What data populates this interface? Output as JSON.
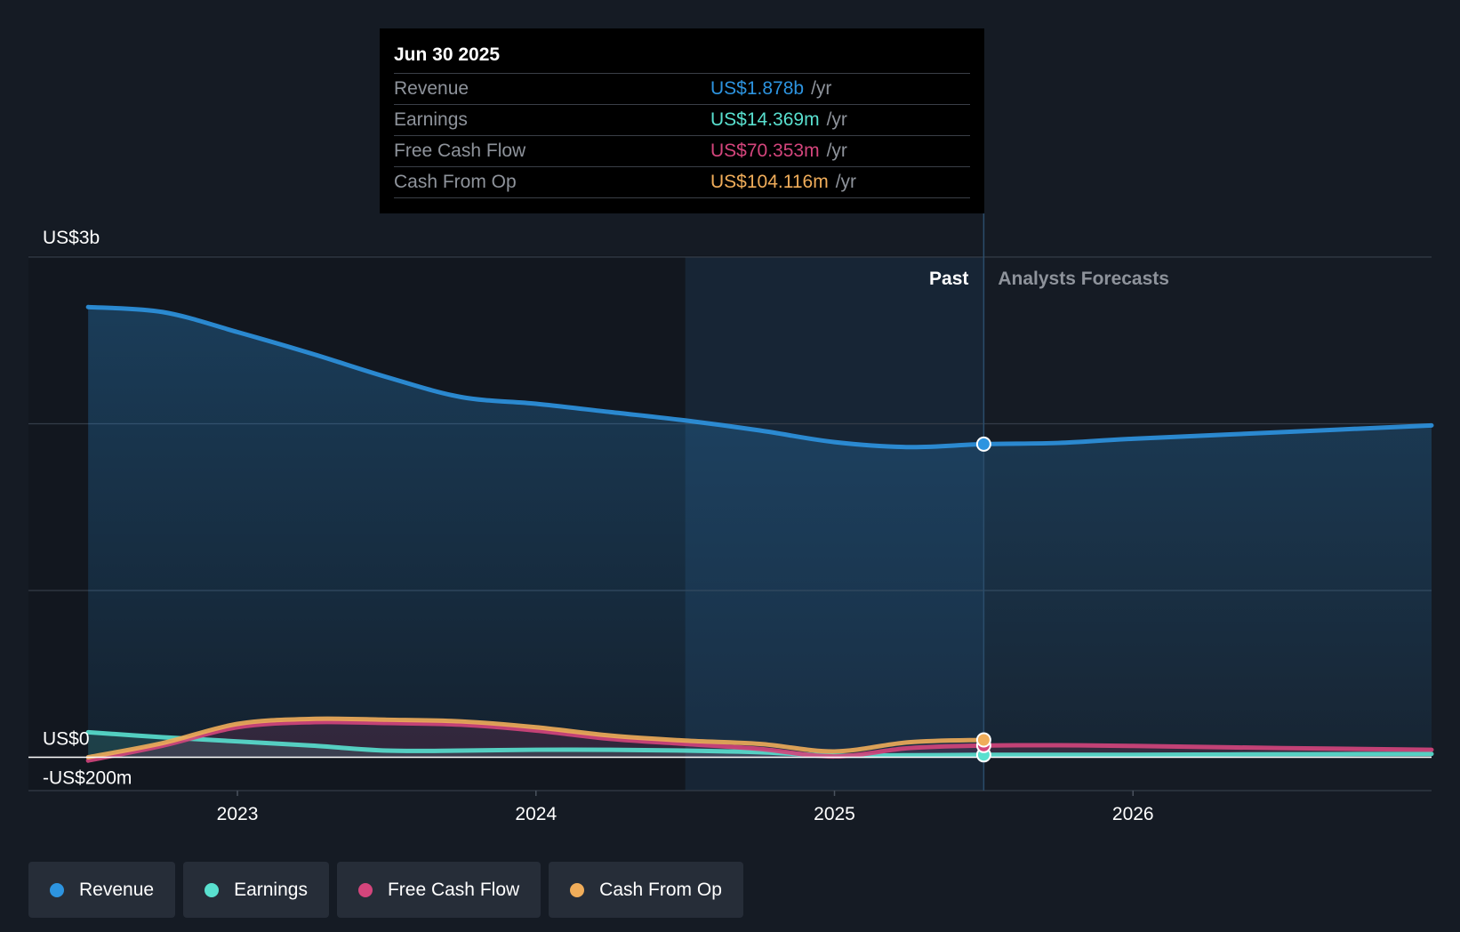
{
  "tooltip": {
    "date": "Jun 30 2025",
    "rows": [
      {
        "label": "Revenue",
        "value": "US$1.878b",
        "unit": "/yr",
        "color": "#2d94e0"
      },
      {
        "label": "Earnings",
        "value": "US$14.369m",
        "unit": "/yr",
        "color": "#59e0cf"
      },
      {
        "label": "Free Cash Flow",
        "value": "US$70.353m",
        "unit": "/yr",
        "color": "#d4457c"
      },
      {
        "label": "Cash From Op",
        "value": "US$104.116m",
        "unit": "/yr",
        "color": "#f0ad5a"
      }
    ]
  },
  "legend": [
    {
      "label": "Revenue",
      "color": "#2d94e0"
    },
    {
      "label": "Earnings",
      "color": "#59e0cf"
    },
    {
      "label": "Free Cash Flow",
      "color": "#d4457c"
    },
    {
      "label": "Cash From Op",
      "color": "#f0ad5a"
    }
  ],
  "chart_data": {
    "type": "area",
    "y_tick_labels": [
      {
        "label": "US$3b",
        "value": 3000
      },
      {
        "label": "US$0",
        "value": 0
      },
      {
        "label": "-US$200m",
        "value": -200
      }
    ],
    "ylim": [
      -200,
      3000
    ],
    "y_gridlines": [
      3000,
      2000,
      1000,
      0,
      -200
    ],
    "x_ticks": [
      {
        "label": "2023",
        "value": 2023.0
      },
      {
        "label": "2024",
        "value": 2024.0
      },
      {
        "label": "2025",
        "value": 2025.0
      },
      {
        "label": "2026",
        "value": 2026.0
      }
    ],
    "xlim": [
      2022.3,
      2027.0
    ],
    "past_label": "Past",
    "forecast_label": "Analysts Forecasts",
    "divider_x": 2025.5,
    "highlight_band": [
      2024.5,
      2025.5
    ],
    "grid": true,
    "series": [
      {
        "name": "Revenue",
        "color": "#2d94e0",
        "fill": true,
        "points": [
          [
            2022.5,
            2700
          ],
          [
            2022.75,
            2670
          ],
          [
            2023.0,
            2550
          ],
          [
            2023.25,
            2420
          ],
          [
            2023.5,
            2280
          ],
          [
            2023.75,
            2160
          ],
          [
            2024.0,
            2120
          ],
          [
            2024.25,
            2070
          ],
          [
            2024.5,
            2020
          ],
          [
            2024.75,
            1960
          ],
          [
            2025.0,
            1890
          ],
          [
            2025.25,
            1860
          ],
          [
            2025.5,
            1878
          ],
          [
            2025.75,
            1885
          ],
          [
            2026.0,
            1910
          ],
          [
            2026.5,
            1950
          ],
          [
            2027.0,
            1990
          ]
        ]
      },
      {
        "name": "Earnings",
        "color": "#59e0cf",
        "fill": true,
        "points": [
          [
            2022.5,
            150
          ],
          [
            2022.75,
            120
          ],
          [
            2023.0,
            95
          ],
          [
            2023.25,
            70
          ],
          [
            2023.5,
            40
          ],
          [
            2023.75,
            40
          ],
          [
            2024.0,
            45
          ],
          [
            2024.25,
            45
          ],
          [
            2024.5,
            40
          ],
          [
            2024.75,
            30
          ],
          [
            2025.0,
            10
          ],
          [
            2025.25,
            12
          ],
          [
            2025.5,
            14.369
          ],
          [
            2025.75,
            15
          ],
          [
            2026.0,
            15
          ],
          [
            2026.5,
            18
          ],
          [
            2027.0,
            20
          ]
        ]
      },
      {
        "name": "Free Cash Flow",
        "color": "#d4457c",
        "fill": true,
        "points": [
          [
            2022.5,
            -20
          ],
          [
            2022.75,
            70
          ],
          [
            2023.0,
            180
          ],
          [
            2023.25,
            210
          ],
          [
            2023.5,
            205
          ],
          [
            2023.75,
            195
          ],
          [
            2024.0,
            160
          ],
          [
            2024.25,
            110
          ],
          [
            2024.5,
            80
          ],
          [
            2024.75,
            50
          ],
          [
            2025.0,
            5
          ],
          [
            2025.25,
            55
          ],
          [
            2025.5,
            70.353
          ],
          [
            2025.75,
            72
          ],
          [
            2026.0,
            68
          ],
          [
            2026.5,
            55
          ],
          [
            2027.0,
            45
          ]
        ]
      },
      {
        "name": "Cash From Op",
        "color": "#f0ad5a",
        "fill": false,
        "points": [
          [
            2022.5,
            0
          ],
          [
            2022.75,
            85
          ],
          [
            2023.0,
            200
          ],
          [
            2023.25,
            230
          ],
          [
            2023.5,
            225
          ],
          [
            2023.75,
            215
          ],
          [
            2024.0,
            180
          ],
          [
            2024.25,
            130
          ],
          [
            2024.5,
            100
          ],
          [
            2024.75,
            80
          ],
          [
            2025.0,
            35
          ],
          [
            2025.25,
            90
          ],
          [
            2025.5,
            104.116
          ]
        ]
      }
    ]
  }
}
